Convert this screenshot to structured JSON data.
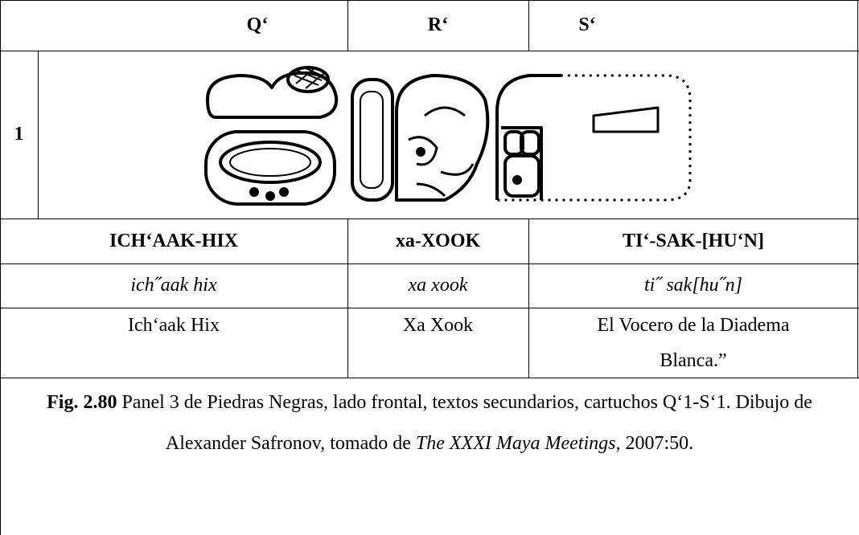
{
  "header": [
    "Q‘",
    "R‘",
    "S‘"
  ],
  "row_label": "1",
  "transliteration": [
    "ICH‘AAK-HIX",
    "xa-XOOK",
    "TI‘-SAK-[HU‘N]"
  ],
  "transcription": [
    "ich˝aak hix",
    "xa xook",
    "ti˝ sak[hu˝n]"
  ],
  "translation": [
    "Ich‘aak Hix",
    "Xa Xook",
    "El Vocero de la Diadema Blanca.”"
  ],
  "caption": {
    "label": "Fig. 2.80",
    "text": "Panel 3 de Piedras Negras, lado frontal, textos secundarios, cartuchos Q‘1-S‘1. Dibujo de Alexander Safronov, tomado de",
    "title": "The XXXI Maya Meetings",
    "end": ", 2007:50."
  }
}
